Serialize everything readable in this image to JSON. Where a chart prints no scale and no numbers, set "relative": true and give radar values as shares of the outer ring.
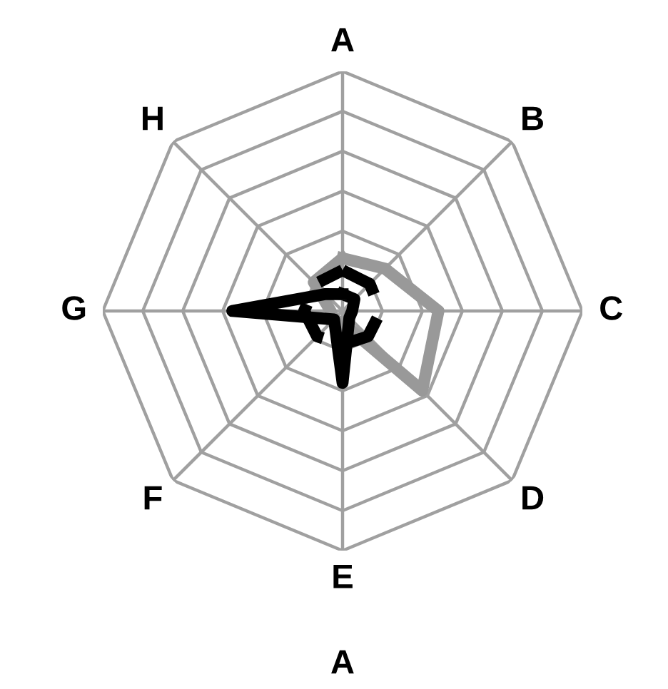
{
  "chart_data": {
    "type": "radar",
    "relative": true,
    "xlabel": "A",
    "categories": [
      "A",
      "B",
      "C",
      "D",
      "E",
      "F",
      "G",
      "H"
    ],
    "series": [
      {
        "color": "#999999",
        "line_style": "solid",
        "values": [
          0.22,
          0.25,
          0.4,
          0.47,
          0.05,
          0.05,
          0.05,
          0.17
        ]
      },
      {
        "color": "#000000",
        "line_style": "solid",
        "values": [
          0.07,
          0.07,
          0.04,
          0.04,
          0.3,
          0.05,
          0.46,
          0.1
        ]
      },
      {
        "color": "#000000",
        "line_style": "dashed",
        "values": [
          0.17,
          0.16,
          0.16,
          0.15,
          0.14,
          0.15,
          0.16,
          0.16
        ]
      }
    ],
    "marker": "none",
    "grid": true
  }
}
